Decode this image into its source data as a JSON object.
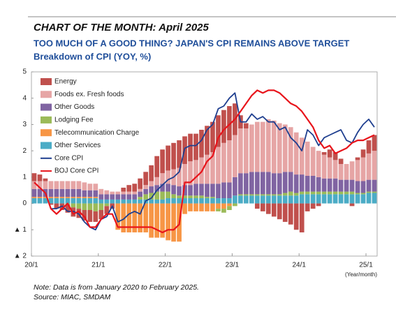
{
  "chart_data": {
    "type": "bar",
    "header": "CHART OF THE MONTH: April 2025",
    "title": "TOO MUCH OF A GOOD THING? JAPAN'S CPI REMAINS ABOVE TARGET",
    "subtitle": "Breakdown of CPI (YOY, %)",
    "x_label": "(Year/month)",
    "notes": [
      "Note: Data is from January 2020 to February 2025.",
      "Source: MIAC, SMDAM"
    ],
    "categories": [
      "20/1",
      null,
      null,
      null,
      null,
      null,
      null,
      null,
      null,
      null,
      null,
      null,
      "21/1",
      null,
      null,
      null,
      null,
      null,
      null,
      null,
      null,
      null,
      null,
      null,
      "22/1",
      null,
      null,
      null,
      null,
      null,
      null,
      null,
      null,
      null,
      null,
      null,
      "23/1",
      null,
      null,
      null,
      null,
      null,
      null,
      null,
      null,
      null,
      null,
      null,
      "24/1",
      null,
      null,
      null,
      null,
      null,
      null,
      null,
      null,
      null,
      null,
      null,
      "25/1",
      null
    ],
    "ylim": [
      -2,
      5
    ],
    "yticks": [
      5,
      4,
      3,
      2,
      1,
      0,
      {
        "value": -1,
        "label": "▲ 1"
      },
      {
        "value": -2,
        "label": "▲ 2"
      }
    ],
    "grid": false,
    "legend": "upper-left",
    "series": [
      {
        "name": "Energy",
        "color": "#c0504d",
        "values": [
          0.3,
          0.25,
          0.1,
          -0.05,
          -0.2,
          -0.25,
          -0.3,
          -0.35,
          -0.35,
          -0.4,
          -0.45,
          -0.4,
          -0.35,
          -0.3,
          -0.2,
          0.0,
          0.15,
          0.25,
          0.3,
          0.4,
          0.5,
          0.6,
          0.8,
          0.9,
          0.95,
          1.0,
          1.05,
          1.05,
          1.05,
          1.0,
          1.05,
          1.1,
          1.15,
          1.2,
          1.25,
          1.3,
          1.2,
          0.5,
          0.2,
          0.0,
          -0.2,
          -0.3,
          -0.4,
          -0.5,
          -0.6,
          -0.7,
          -0.8,
          -1.0,
          -1.1,
          -0.3,
          -0.2,
          -0.1,
          0.1,
          0.3,
          0.3,
          0.2,
          0.0,
          -0.1,
          0.1,
          0.3,
          0.5,
          0.6
        ]
      },
      {
        "name": "Foods ex. Fresh foods",
        "color": "#e6a5a5",
        "values": [
          0.3,
          0.3,
          0.3,
          0.3,
          0.3,
          0.3,
          0.3,
          0.3,
          0.3,
          0.3,
          0.25,
          0.25,
          0.2,
          0.15,
          0.1,
          0.1,
          0.1,
          0.1,
          0.1,
          0.1,
          0.15,
          0.2,
          0.3,
          0.4,
          0.5,
          0.6,
          0.7,
          0.8,
          0.9,
          0.9,
          1.0,
          1.1,
          1.2,
          1.4,
          1.5,
          1.6,
          1.6,
          1.7,
          1.7,
          1.8,
          1.9,
          1.9,
          2.0,
          2.0,
          1.9,
          1.8,
          1.7,
          1.6,
          1.4,
          1.3,
          1.1,
          1.0,
          0.9,
          0.8,
          0.7,
          0.6,
          0.6,
          0.7,
          0.8,
          0.9,
          1.0,
          1.1
        ]
      },
      {
        "name": "Other Goods",
        "color": "#8064a2",
        "values": [
          0.3,
          0.3,
          0.3,
          0.3,
          0.3,
          0.3,
          0.3,
          0.3,
          0.3,
          0.25,
          0.25,
          0.25,
          0.2,
          0.2,
          0.2,
          0.2,
          0.2,
          0.2,
          0.2,
          0.2,
          0.2,
          0.25,
          0.25,
          0.3,
          0.3,
          0.35,
          0.35,
          0.4,
          0.4,
          0.45,
          0.45,
          0.5,
          0.5,
          0.55,
          0.6,
          0.6,
          0.7,
          0.8,
          0.8,
          0.85,
          0.85,
          0.85,
          0.85,
          0.8,
          0.8,
          0.8,
          0.75,
          0.7,
          0.65,
          0.6,
          0.6,
          0.55,
          0.5,
          0.5,
          0.5,
          0.45,
          0.45,
          0.45,
          0.45,
          0.45,
          0.45,
          0.45
        ]
      },
      {
        "name": "Lodging Fee",
        "color": "#9bbb59",
        "values": [
          0,
          0,
          0,
          0,
          0,
          0,
          -0.05,
          -0.15,
          -0.2,
          -0.25,
          -0.25,
          -0.3,
          -0.25,
          -0.1,
          0,
          0,
          0,
          0,
          0,
          0.1,
          0.2,
          0.25,
          0.3,
          0.3,
          0.25,
          0.15,
          0.1,
          0.1,
          0.1,
          0.1,
          0.1,
          0.05,
          0.05,
          -0.1,
          -0.15,
          -0.15,
          -0.1,
          0.05,
          0.05,
          0.05,
          0.05,
          0.05,
          0.05,
          0.05,
          0.05,
          0.1,
          0.15,
          0.1,
          0.1,
          0.1,
          0.1,
          0.1,
          0.1,
          0.1,
          0.1,
          0.1,
          0.1,
          0.1,
          0.05,
          0.05,
          0.05,
          0.05
        ]
      },
      {
        "name": "Telecommunication Charge",
        "color": "#f79646",
        "values": [
          0.05,
          0.05,
          0.05,
          0.05,
          0.05,
          0.05,
          0.05,
          0.05,
          0.05,
          0.05,
          0.05,
          0.05,
          0,
          0,
          0,
          -1.0,
          -1.1,
          -1.1,
          -1.1,
          -1.1,
          -1.1,
          -1.3,
          -1.3,
          -1.3,
          -1.4,
          -1.45,
          -1.45,
          -0.4,
          -0.3,
          -0.3,
          -0.3,
          -0.3,
          -0.3,
          -0.2,
          -0.2,
          -0.1,
          0,
          0,
          0,
          0,
          0,
          0,
          0,
          0,
          0,
          0,
          0,
          0,
          0,
          0,
          0,
          0,
          0,
          0,
          0,
          0,
          0,
          0,
          0,
          0,
          0,
          0
        ]
      },
      {
        "name": "Other Services",
        "color": "#4bacc6",
        "values": [
          0.2,
          0.2,
          0.2,
          0.2,
          0.2,
          0.2,
          0.2,
          0.2,
          0.2,
          0.2,
          0.2,
          0.2,
          0.15,
          0.15,
          0.15,
          0.15,
          0.15,
          0.15,
          0.15,
          0.15,
          0.15,
          0.15,
          0.15,
          0.15,
          0.2,
          0.2,
          0.2,
          0.2,
          0.2,
          0.2,
          0.2,
          0.2,
          0.2,
          0.2,
          0.2,
          0.2,
          0.3,
          0.3,
          0.3,
          0.3,
          0.3,
          0.3,
          0.3,
          0.3,
          0.3,
          0.3,
          0.3,
          0.3,
          0.35,
          0.35,
          0.35,
          0.35,
          0.35,
          0.35,
          0.35,
          0.35,
          0.35,
          0.35,
          0.35,
          0.35,
          0.4,
          0.4
        ]
      },
      {
        "name": "Core CPI",
        "type": "line",
        "color": "#1f3f8f",
        "values": [
          0.8,
          0.6,
          0.4,
          -0.2,
          -0.2,
          -0.1,
          -0.3,
          -0.3,
          -0.4,
          -0.7,
          -0.9,
          -1.0,
          -0.6,
          -0.5,
          -0.1,
          -0.7,
          -0.6,
          -0.4,
          -0.3,
          -0.4,
          0.1,
          0.2,
          0.5,
          0.7,
          0.9,
          1.0,
          1.2,
          2.1,
          2.2,
          2.2,
          2.4,
          2.8,
          3.0,
          3.6,
          3.7,
          4.0,
          4.2,
          3.1,
          3.1,
          3.4,
          3.2,
          3.3,
          3.1,
          3.1,
          2.8,
          2.9,
          2.5,
          2.3,
          2.0,
          2.8,
          2.6,
          2.2,
          2.5,
          2.6,
          2.7,
          2.8,
          2.4,
          2.3,
          2.7,
          3.0,
          3.2,
          2.9
        ]
      },
      {
        "name": "BOJ Core CPI",
        "type": "line",
        "color": "#e8141b",
        "values": [
          0.8,
          0.6,
          0.4,
          -0.2,
          -0.4,
          -0.2,
          0.0,
          -0.4,
          -0.3,
          -0.5,
          -0.9,
          -0.9,
          -0.6,
          -0.4,
          -0.4,
          -0.9,
          -0.9,
          -0.9,
          -0.9,
          -0.9,
          -0.9,
          -0.9,
          -1.0,
          -1.1,
          -1.0,
          -1.0,
          -0.8,
          0.8,
          0.8,
          1.0,
          1.2,
          1.6,
          1.8,
          2.5,
          2.8,
          3.0,
          3.2,
          3.5,
          3.8,
          4.1,
          4.3,
          4.2,
          4.3,
          4.3,
          4.2,
          4.0,
          3.8,
          3.7,
          3.5,
          3.2,
          2.9,
          2.4,
          2.1,
          2.2,
          1.9,
          2.0,
          2.1,
          2.3,
          2.4,
          2.4,
          2.5,
          2.6
        ]
      }
    ]
  }
}
